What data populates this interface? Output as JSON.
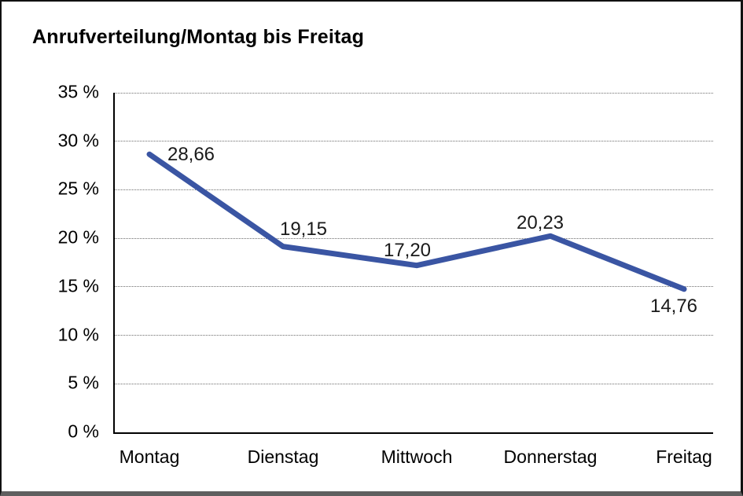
{
  "chart_data": {
    "type": "line",
    "title": "Anrufverteilung/Montag bis Freitag",
    "categories": [
      "Montag",
      "Dienstag",
      "Mittwoch",
      "Donnerstag",
      "Freitag"
    ],
    "series": [
      {
        "name": "Anrufverteilung",
        "values": [
          28.66,
          19.15,
          17.2,
          20.23,
          14.76
        ],
        "value_labels": [
          "28,66",
          "19,15",
          "17,20",
          "20,23",
          "14,76"
        ],
        "color": "#3A55A3"
      }
    ],
    "ylim": [
      0,
      35
    ],
    "ytick_values": [
      0,
      5,
      10,
      15,
      20,
      25,
      30,
      35
    ],
    "ytick_labels": [
      "0 %",
      "5 %",
      "10 %",
      "15 %",
      "20 %",
      "25 %",
      "30 %",
      "35 %"
    ],
    "xlabel": "",
    "ylabel": "",
    "grid": "horizontal dotted",
    "legend": "none"
  }
}
